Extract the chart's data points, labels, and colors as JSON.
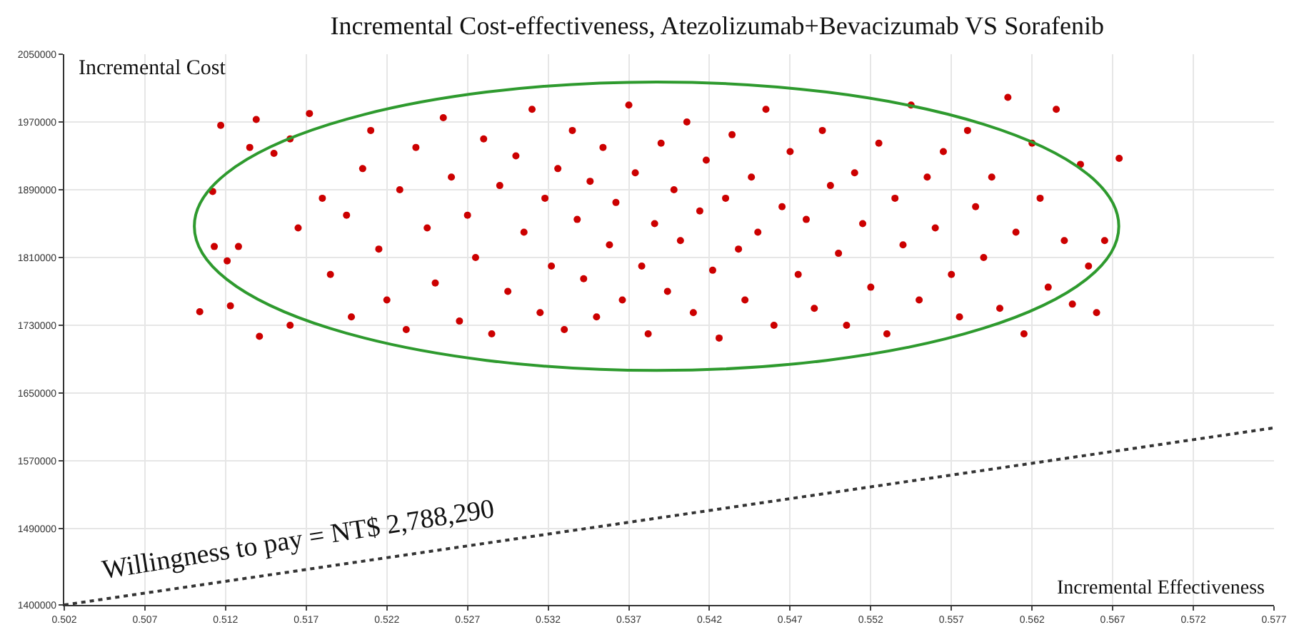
{
  "chart_data": {
    "type": "scatter",
    "title": "Incremental Cost-effectiveness, Atezolizumab+Bevacizumab VS Sorafenib",
    "xlabel": "Incremental Effectiveness",
    "ylabel": "Incremental Cost",
    "xlim": [
      0.502,
      0.577
    ],
    "xticks": [
      0.502,
      0.507,
      0.512,
      0.517,
      0.522,
      0.527,
      0.532,
      0.537,
      0.542,
      0.547,
      0.552,
      0.557,
      0.562,
      0.567,
      0.572,
      0.577
    ],
    "ylim": [
      1400000,
      2050000
    ],
    "yticks": [
      1400000,
      1490000,
      1570000,
      1650000,
      1730000,
      1810000,
      1890000,
      1970000,
      2050000
    ],
    "grid": true,
    "annotations": [
      {
        "text": "Willingness to pay = NT$ 2,788,290",
        "x": 0.5165,
        "y": 1440400
      }
    ],
    "series": [
      {
        "color": "#cc0000",
        "marker": "circle",
        "x": [
          0.5104,
          0.5117,
          0.5123,
          0.5141,
          0.5139,
          0.5112,
          0.5113,
          0.5128,
          0.5121,
          0.5135,
          0.515,
          0.516,
          0.516,
          0.5165,
          0.5172,
          0.518,
          0.5185,
          0.5195,
          0.5198,
          0.5205,
          0.521,
          0.5215,
          0.522,
          0.5228,
          0.5232,
          0.5238,
          0.5245,
          0.525,
          0.5255,
          0.526,
          0.5265,
          0.527,
          0.5275,
          0.528,
          0.5285,
          0.529,
          0.5295,
          0.53,
          0.5305,
          0.531,
          0.5315,
          0.5318,
          0.5322,
          0.5326,
          0.533,
          0.5335,
          0.5338,
          0.5342,
          0.5346,
          0.535,
          0.5354,
          0.5358,
          0.5362,
          0.5366,
          0.537,
          0.5374,
          0.5378,
          0.5382,
          0.5386,
          0.539,
          0.5394,
          0.5398,
          0.5402,
          0.5406,
          0.541,
          0.5414,
          0.5418,
          0.5422,
          0.5426,
          0.543,
          0.5434,
          0.5438,
          0.5442,
          0.5446,
          0.545,
          0.5455,
          0.546,
          0.5465,
          0.547,
          0.5475,
          0.548,
          0.5485,
          0.549,
          0.5495,
          0.55,
          0.5505,
          0.551,
          0.5515,
          0.552,
          0.5525,
          0.553,
          0.5535,
          0.554,
          0.5545,
          0.555,
          0.5555,
          0.556,
          0.5565,
          0.557,
          0.5575,
          0.558,
          0.5585,
          0.559,
          0.5595,
          0.56,
          0.5605,
          0.561,
          0.5615,
          0.562,
          0.5625,
          0.563,
          0.5635,
          0.564,
          0.5645,
          0.565,
          0.5655,
          0.566,
          0.5665,
          0.5674
        ],
        "values": [
          1746000,
          1966000,
          1753000,
          1717000,
          1973000,
          1888000,
          1823000,
          1823000,
          1806000,
          1940000,
          1933000,
          1950000,
          1730000,
          1845000,
          1980000,
          1880000,
          1790000,
          1860000,
          1740000,
          1915000,
          1960000,
          1820000,
          1760000,
          1890000,
          1725000,
          1940000,
          1845000,
          1780000,
          1975000,
          1905000,
          1735000,
          1860000,
          1810000,
          1950000,
          1720000,
          1895000,
          1770000,
          1930000,
          1840000,
          1985000,
          1745000,
          1880000,
          1800000,
          1915000,
          1725000,
          1960000,
          1855000,
          1785000,
          1900000,
          1740000,
          1940000,
          1825000,
          1875000,
          1760000,
          1990000,
          1910000,
          1800000,
          1720000,
          1850000,
          1945000,
          1770000,
          1890000,
          1830000,
          1970000,
          1745000,
          1865000,
          1925000,
          1795000,
          1715000,
          1880000,
          1955000,
          1820000,
          1760000,
          1905000,
          1840000,
          1985000,
          1730000,
          1870000,
          1935000,
          1790000,
          1855000,
          1750000,
          1960000,
          1895000,
          1815000,
          1730000,
          1910000,
          1850000,
          1775000,
          1945000,
          1720000,
          1880000,
          1825000,
          1990000,
          1760000,
          1905000,
          1845000,
          1935000,
          1790000,
          1740000,
          1960000,
          1870000,
          1810000,
          1905000,
          1750000,
          1999000,
          1840000,
          1720000,
          1945000,
          1880000,
          1775000,
          1985000,
          1830000,
          1755000,
          1920000,
          1800000,
          1745000,
          1830000,
          1927000
        ]
      },
      {
        "type": "line",
        "color": "#333333",
        "line_style": "dotted",
        "x": [
          0.502,
          0.577
        ],
        "values": [
          1400000,
          1609000
        ]
      }
    ]
  }
}
